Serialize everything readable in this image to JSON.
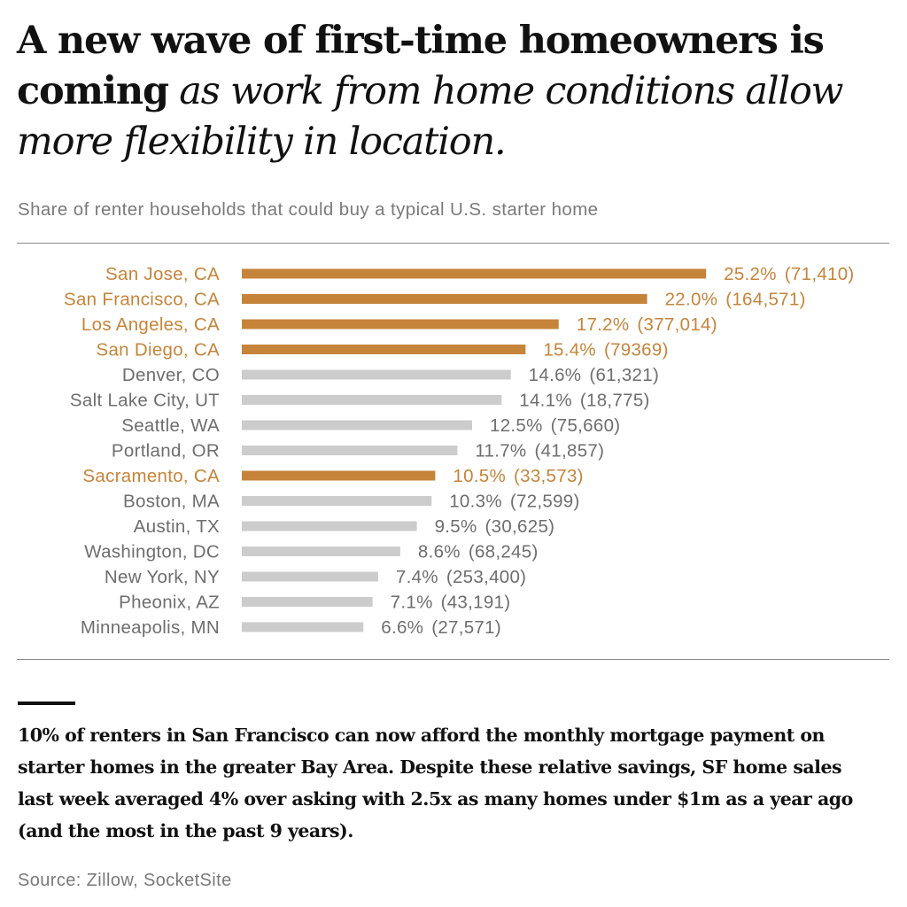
{
  "headline": {
    "bold": "A new wave of first-time homeowners is coming",
    "italic": " as work from home conditions allow more flexibility in location."
  },
  "chart_data": {
    "type": "bar",
    "orientation": "horizontal",
    "title": "Share of renter households that could buy a typical U.S. starter home",
    "categories": [
      "San Jose, CA",
      "San Francisco, CA",
      "Los Angeles, CA",
      "San Diego, CA",
      "Denver, CO",
      "Salt Lake City, UT",
      "Seattle, WA",
      "Portland, OR",
      "Sacramento, CA",
      "Boston, MA",
      "Austin, TX",
      "Washington, DC",
      "New York, NY",
      "Pheonix, AZ",
      "Minneapolis, MN"
    ],
    "values": [
      25.2,
      22.0,
      17.2,
      15.4,
      14.6,
      14.1,
      12.5,
      11.7,
      10.5,
      10.3,
      9.5,
      8.6,
      7.4,
      7.1,
      6.6
    ],
    "value_labels": [
      "25.2%",
      "22.0%",
      "17.2%",
      "15.4%",
      "14.6%",
      "14.1%",
      "12.5%",
      "11.7%",
      "10.5%",
      "10.3%",
      "9.5%",
      "8.6%",
      "7.4%",
      "7.1%",
      "6.6%"
    ],
    "counts": [
      "(71,410)",
      "(164,571)",
      "(377,014)",
      "(79369)",
      "(61,321)",
      "(18,775)",
      "(75,660)",
      "(41,857)",
      "(33,573)",
      "(72,599)",
      "(30,625)",
      "(68,245)",
      "(253,400)",
      "(43,191)",
      "(27,571)"
    ],
    "highlighted": [
      true,
      true,
      true,
      true,
      false,
      false,
      false,
      false,
      true,
      false,
      false,
      false,
      false,
      false,
      false
    ],
    "xlim": [
      0,
      26
    ],
    "grid": false,
    "axes_visible": false,
    "colors": {
      "highlight": "#c6843a",
      "default_bar": "#cccccc",
      "default_text": "#6e6e6e"
    }
  },
  "body_text": "10% of renters in San Francisco can now afford the monthly mortgage payment on starter homes in the greater Bay Area. Despite these relative savings, SF home sales last week averaged 4% over asking with 2.5x as many homes under $1m as a year ago (and the most in the past 9 years).",
  "source": "Source: Zillow, SocketSite"
}
